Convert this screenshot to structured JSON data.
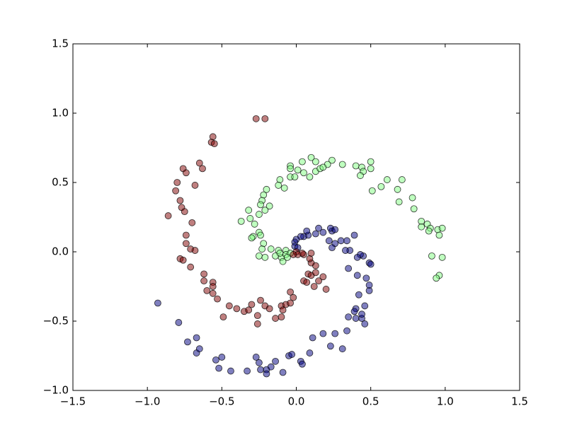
{
  "chart_data": {
    "type": "scatter",
    "xlim": [
      -1.5,
      1.5
    ],
    "ylim": [
      -1.0,
      1.5
    ],
    "xticks": [
      {
        "value": -1.5,
        "label": "−1.5"
      },
      {
        "value": -1.0,
        "label": "−1.0"
      },
      {
        "value": -0.5,
        "label": "−0.5"
      },
      {
        "value": 0,
        "label": "0.0"
      },
      0.5,
      {
        "value": 1.0,
        "label": "1.0"
      },
      1.5
    ],
    "yticks": [
      {
        "value": -1.0,
        "label": "−1.0"
      },
      {
        "value": -0.5,
        "label": "−0.5"
      },
      {
        "value": 0,
        "label": "0.0"
      },
      0.5,
      {
        "value": 1.0,
        "label": "1.0"
      },
      1.5
    ],
    "series": [
      {
        "color": "#000080",
        "x": [
          -0.93,
          -0.79,
          -0.73,
          -0.67,
          -0.67,
          -0.65,
          -0.54,
          -0.5,
          -0.52,
          -0.44,
          -0.33,
          -0.27,
          -0.25,
          -0.24,
          -0.2,
          -0.2,
          -0.17,
          -0.14,
          -0.09,
          -0.05,
          -0.03,
          0.03,
          0.04,
          0.09,
          0.11,
          0.18,
          0.23,
          0.26,
          0.31,
          0.34,
          0.35,
          0.4,
          0.39,
          0.4,
          0.44,
          0.46,
          0.46,
          0.44,
          0.49,
          0.49,
          0.42,
          0.41,
          0.47,
          0.35,
          0.49,
          0.5,
          0.45,
          0.43,
          0.41,
          0.36,
          0.33,
          0.39,
          0.34,
          0.3,
          0.26,
          0.24,
          0.22,
          0.24,
          0.23,
          0.26,
          0.18,
          0.15,
          0.13,
          0.08,
          0.07,
          0.05,
          0.03,
          0.0,
          -0.01,
          -0.01,
          0.01
        ],
        "y": [
          -0.37,
          -0.51,
          -0.65,
          -0.62,
          -0.73,
          -0.7,
          -0.78,
          -0.76,
          -0.84,
          -0.86,
          -0.86,
          -0.76,
          -0.8,
          -0.85,
          -0.85,
          -0.88,
          -0.83,
          -0.79,
          -0.87,
          -0.75,
          -0.74,
          -0.79,
          -0.81,
          -0.73,
          -0.62,
          -0.59,
          -0.68,
          -0.59,
          -0.7,
          -0.57,
          -0.47,
          -0.41,
          -0.43,
          -0.48,
          -0.48,
          -0.39,
          -0.52,
          -0.45,
          -0.28,
          -0.24,
          -0.31,
          -0.17,
          -0.19,
          -0.12,
          -0.08,
          -0.09,
          -0.03,
          -0.02,
          -0.04,
          0.01,
          0.01,
          0.12,
          0.08,
          0.08,
          0.06,
          0.03,
          0.08,
          0.15,
          0.17,
          0.16,
          0.14,
          0.17,
          0.13,
          0.12,
          0.15,
          0.11,
          0.11,
          0.09,
          0.07,
          0.04,
          0.03
        ]
      },
      {
        "color": "#7fff7f",
        "x": [
          0.1,
          0.13,
          0.04,
          0.24,
          0.21,
          0.31,
          0.4,
          0.44,
          0.5,
          0.5,
          0.45,
          0.43,
          0.61,
          0.71,
          0.57,
          0.51,
          0.68,
          0.78,
          0.69,
          0.79,
          0.84,
          0.88,
          0.84,
          0.9,
          0.89,
          0.95,
          0.98,
          0.96,
          0.91,
          0.98,
          0.96,
          0.94,
          -0.04,
          -0.04,
          0.01,
          0.05,
          0.13,
          0.16,
          0.18,
          -0.04,
          0.09,
          -0.11,
          -0.01,
          -0.12,
          -0.08,
          -0.2,
          -0.22,
          -0.23,
          -0.24,
          -0.18,
          -0.21,
          -0.32,
          -0.25,
          -0.31,
          -0.37,
          -0.28,
          -0.25,
          -0.29,
          -0.3,
          -0.24,
          -0.22,
          -0.23,
          -0.25,
          -0.21,
          -0.17,
          -0.14,
          -0.12,
          -0.1,
          -0.09,
          -0.07,
          -0.07,
          -0.04,
          -0.06,
          -0.11
        ],
        "y": [
          0.68,
          0.65,
          0.65,
          0.66,
          0.63,
          0.63,
          0.62,
          0.61,
          0.65,
          0.6,
          0.58,
          0.55,
          0.52,
          0.52,
          0.47,
          0.44,
          0.45,
          0.39,
          0.36,
          0.31,
          0.22,
          0.2,
          0.18,
          0.17,
          0.15,
          0.16,
          0.17,
          0.12,
          -0.03,
          -0.04,
          -0.17,
          -0.19,
          0.62,
          0.6,
          0.59,
          0.57,
          0.58,
          0.6,
          0.61,
          0.54,
          0.54,
          0.52,
          0.54,
          0.48,
          0.46,
          0.45,
          0.41,
          0.37,
          0.34,
          0.33,
          0.3,
          0.3,
          0.27,
          0.24,
          0.22,
          0.2,
          0.14,
          0.11,
          0.1,
          0.12,
          0.06,
          0.02,
          -0.03,
          -0.04,
          0.02,
          -0.03,
          0.01,
          -0.04,
          -0.07,
          0.01,
          -0.02,
          -0.01,
          -0.04,
          -0.01
        ]
      },
      {
        "color": "#800000",
        "x": [
          -0.27,
          -0.21,
          -0.56,
          -0.57,
          -0.55,
          -0.65,
          -0.63,
          -0.76,
          -0.74,
          -0.8,
          -0.68,
          -0.81,
          -0.78,
          -0.77,
          -0.75,
          -0.86,
          -0.7,
          -0.74,
          -0.74,
          -0.71,
          -0.68,
          -0.78,
          -0.76,
          -0.71,
          -0.62,
          -0.62,
          -0.56,
          -0.56,
          -0.6,
          -0.56,
          -0.53,
          -0.45,
          -0.49,
          -0.4,
          -0.35,
          -0.32,
          -0.3,
          -0.24,
          -0.21,
          -0.18,
          -0.26,
          -0.26,
          -0.14,
          -0.1,
          -0.1,
          -0.07,
          -0.04,
          -0.02,
          -0.04,
          -0.09,
          0.05,
          0.08,
          0.1,
          0.13,
          0.07,
          0.12,
          0.2,
          0.15,
          0.13,
          0.1,
          0.09,
          0.1,
          0.05,
          0.04,
          0.0,
          0.01,
          -0.02,
          0.18
        ],
        "y": [
          0.96,
          0.96,
          0.83,
          0.79,
          0.78,
          0.64,
          0.6,
          0.6,
          0.57,
          0.5,
          0.48,
          0.44,
          0.37,
          0.32,
          0.29,
          0.26,
          0.21,
          0.12,
          0.06,
          0.02,
          0.01,
          -0.05,
          -0.06,
          -0.11,
          -0.16,
          -0.21,
          -0.22,
          -0.25,
          -0.28,
          -0.3,
          -0.34,
          -0.39,
          -0.47,
          -0.41,
          -0.43,
          -0.42,
          -0.38,
          -0.35,
          -0.39,
          -0.41,
          -0.52,
          -0.46,
          -0.48,
          -0.47,
          -0.39,
          -0.38,
          -0.29,
          -0.33,
          -0.37,
          -0.42,
          -0.21,
          -0.16,
          -0.17,
          -0.15,
          -0.22,
          -0.25,
          -0.27,
          -0.21,
          -0.1,
          -0.08,
          -0.05,
          -0.01,
          -0.02,
          -0.01,
          0.0,
          -0.02,
          -0.02,
          -0.18
        ]
      }
    ]
  }
}
